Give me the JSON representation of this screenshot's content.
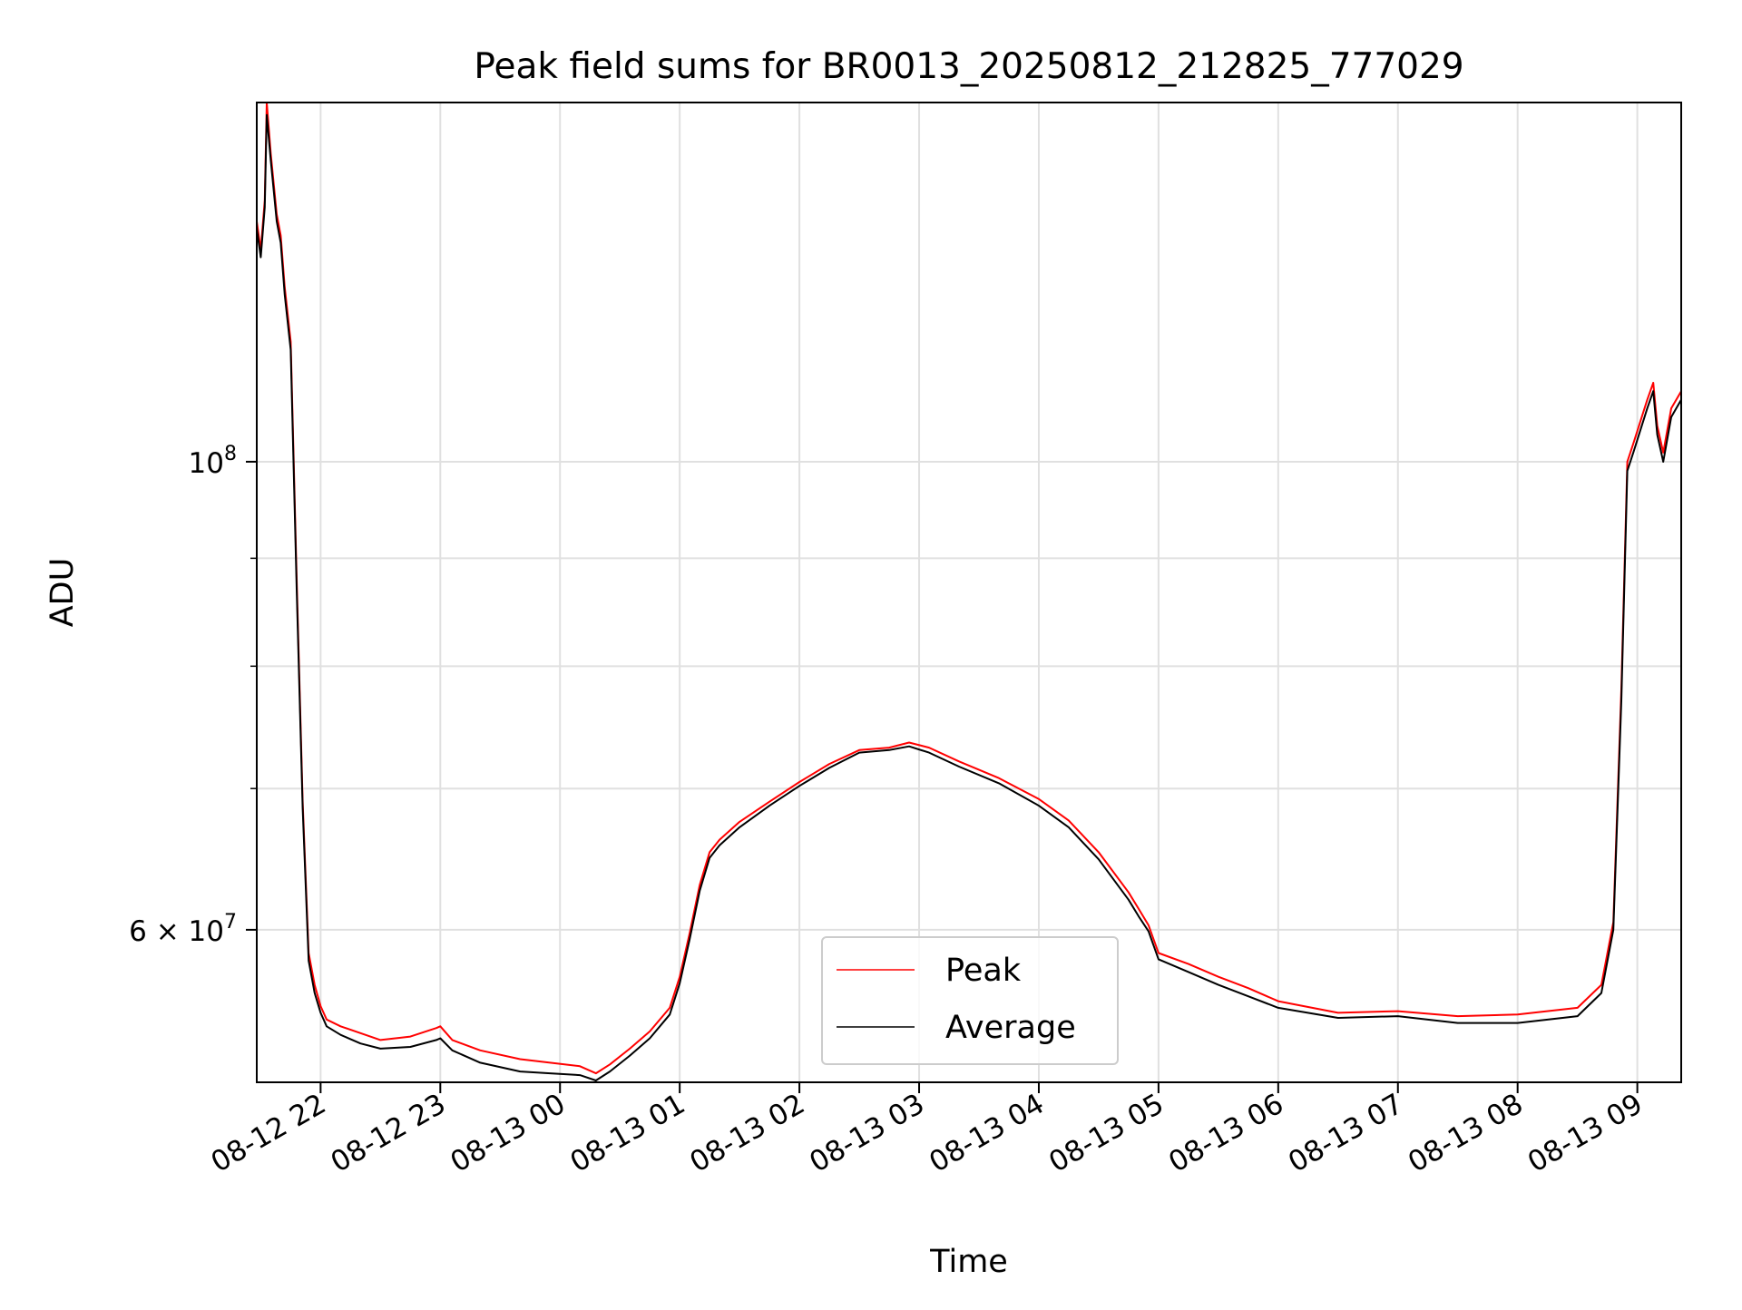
{
  "chart_data": {
    "type": "line",
    "title": "Peak field sums for BR0013_20250812_212825_777029",
    "xlabel": "Time",
    "ylabel": "ADU",
    "yscale": "log",
    "grid": true,
    "legend_position": "lower center",
    "xlim": [
      "2025-08-12 21:28",
      "2025-08-13 09:22"
    ],
    "ylim": [
      50800000,
      148000000
    ],
    "x_ticks": [
      "08-12 22",
      "08-12 23",
      "08-13 00",
      "08-13 01",
      "08-13 02",
      "08-13 03",
      "08-13 04",
      "08-13 05",
      "08-13 06",
      "08-13 07",
      "08-13 08",
      "08-13 09"
    ],
    "y_tick_labels": [
      {
        "value": 100000000,
        "base": "10",
        "exp": "8",
        "prefix": ""
      },
      {
        "value": 60000000,
        "base": "10",
        "exp": "7",
        "prefix": "6 × "
      }
    ],
    "y_minor_ticks": [
      70000000,
      80000000,
      90000000
    ],
    "series": [
      {
        "name": "Peak",
        "color": "#ff0000",
        "x": [
          "2025-08-12 21:28",
          "2025-08-12 21:30",
          "2025-08-12 21:32",
          "2025-08-12 21:33",
          "2025-08-12 21:35",
          "2025-08-12 21:38",
          "2025-08-12 21:40",
          "2025-08-12 21:42",
          "2025-08-12 21:45",
          "2025-08-12 21:48",
          "2025-08-12 21:51",
          "2025-08-12 21:54",
          "2025-08-12 21:57",
          "2025-08-12 22:00",
          "2025-08-12 22:03",
          "2025-08-12 22:10",
          "2025-08-12 22:20",
          "2025-08-12 22:30",
          "2025-08-12 22:45",
          "2025-08-12 22:58",
          "2025-08-12 23:00",
          "2025-08-12 23:06",
          "2025-08-12 23:20",
          "2025-08-12 23:40",
          "2025-08-12 23:55",
          "2025-08-13 00:10",
          "2025-08-13 00:18",
          "2025-08-13 00:25",
          "2025-08-13 00:35",
          "2025-08-13 00:45",
          "2025-08-13 00:55",
          "2025-08-13 01:00",
          "2025-08-13 01:05",
          "2025-08-13 01:10",
          "2025-08-13 01:15",
          "2025-08-13 01:20",
          "2025-08-13 01:30",
          "2025-08-13 01:45",
          "2025-08-13 02:00",
          "2025-08-13 02:15",
          "2025-08-13 02:30",
          "2025-08-13 02:45",
          "2025-08-13 02:55",
          "2025-08-13 03:05",
          "2025-08-13 03:20",
          "2025-08-13 03:40",
          "2025-08-13 04:00",
          "2025-08-13 04:15",
          "2025-08-13 04:30",
          "2025-08-13 04:45",
          "2025-08-13 04:50",
          "2025-08-13 04:55",
          "2025-08-13 05:00",
          "2025-08-13 05:15",
          "2025-08-13 05:30",
          "2025-08-13 05:45",
          "2025-08-13 06:00",
          "2025-08-13 06:30",
          "2025-08-13 07:00",
          "2025-08-13 07:30",
          "2025-08-13 08:00",
          "2025-08-13 08:30",
          "2025-08-13 08:42",
          "2025-08-13 08:48",
          "2025-08-13 08:52",
          "2025-08-13 08:55",
          "2025-08-13 08:58",
          "2025-08-13 09:05",
          "2025-08-13 09:08",
          "2025-08-13 09:10",
          "2025-08-13 09:13",
          "2025-08-13 09:17",
          "2025-08-13 09:22"
        ],
        "values": [
          130000000,
          126000000,
          133000000,
          148000000,
          140000000,
          131000000,
          128000000,
          121000000,
          114000000,
          88000000,
          69000000,
          58500000,
          56500000,
          55200000,
          54400000,
          54000000,
          53600000,
          53200000,
          53400000,
          53900000,
          54000000,
          53200000,
          52600000,
          52100000,
          51900000,
          51700000,
          51300000,
          51800000,
          52700000,
          53700000,
          55100000,
          57000000,
          59800000,
          63000000,
          65300000,
          66200000,
          67500000,
          69000000,
          70500000,
          71900000,
          73000000,
          73200000,
          73600000,
          73200000,
          72100000,
          70800000,
          69200000,
          67600000,
          65300000,
          62500000,
          61400000,
          60300000,
          58500000,
          57800000,
          57000000,
          56300000,
          55500000,
          54800000,
          54900000,
          54600000,
          54700000,
          55100000,
          56500000,
          60500000,
          78000000,
          100000000,
          102000000,
          107000000,
          109000000,
          104000000,
          101000000,
          106000000,
          108000000
        ]
      },
      {
        "name": "Average",
        "color": "#000000",
        "x": [
          "2025-08-12 21:28",
          "2025-08-12 21:30",
          "2025-08-12 21:32",
          "2025-08-12 21:33",
          "2025-08-12 21:35",
          "2025-08-12 21:38",
          "2025-08-12 21:40",
          "2025-08-12 21:42",
          "2025-08-12 21:45",
          "2025-08-12 21:48",
          "2025-08-12 21:51",
          "2025-08-12 21:54",
          "2025-08-12 21:57",
          "2025-08-12 22:00",
          "2025-08-12 22:03",
          "2025-08-12 22:10",
          "2025-08-12 22:20",
          "2025-08-12 22:30",
          "2025-08-12 22:45",
          "2025-08-12 22:58",
          "2025-08-12 23:00",
          "2025-08-12 23:06",
          "2025-08-12 23:20",
          "2025-08-12 23:40",
          "2025-08-12 23:55",
          "2025-08-13 00:10",
          "2025-08-13 00:18",
          "2025-08-13 00:25",
          "2025-08-13 00:35",
          "2025-08-13 00:45",
          "2025-08-13 00:55",
          "2025-08-13 01:00",
          "2025-08-13 01:05",
          "2025-08-13 01:10",
          "2025-08-13 01:15",
          "2025-08-13 01:20",
          "2025-08-13 01:30",
          "2025-08-13 01:45",
          "2025-08-13 02:00",
          "2025-08-13 02:15",
          "2025-08-13 02:30",
          "2025-08-13 02:45",
          "2025-08-13 02:55",
          "2025-08-13 03:05",
          "2025-08-13 03:20",
          "2025-08-13 03:40",
          "2025-08-13 04:00",
          "2025-08-13 04:15",
          "2025-08-13 04:30",
          "2025-08-13 04:45",
          "2025-08-13 04:50",
          "2025-08-13 04:55",
          "2025-08-13 05:00",
          "2025-08-13 05:15",
          "2025-08-13 05:30",
          "2025-08-13 05:45",
          "2025-08-13 06:00",
          "2025-08-13 06:30",
          "2025-08-13 07:00",
          "2025-08-13 07:30",
          "2025-08-13 08:00",
          "2025-08-13 08:30",
          "2025-08-13 08:42",
          "2025-08-13 08:48",
          "2025-08-13 08:52",
          "2025-08-13 08:55",
          "2025-08-13 08:58",
          "2025-08-13 09:05",
          "2025-08-13 09:08",
          "2025-08-13 09:10",
          "2025-08-13 09:13",
          "2025-08-13 09:17",
          "2025-08-13 09:22"
        ],
        "values": [
          129000000,
          125000000,
          132000000,
          146000000,
          139000000,
          130000000,
          127000000,
          120000000,
          113000000,
          87000000,
          68500000,
          58000000,
          56000000,
          54800000,
          54000000,
          53500000,
          53000000,
          52700000,
          52800000,
          53200000,
          53300000,
          52600000,
          51900000,
          51400000,
          51300000,
          51200000,
          50900000,
          51400000,
          52300000,
          53300000,
          54700000,
          56600000,
          59400000,
          62600000,
          64900000,
          65800000,
          67100000,
          68700000,
          70200000,
          71600000,
          72800000,
          73000000,
          73300000,
          72800000,
          71700000,
          70400000,
          68700000,
          67100000,
          64800000,
          62000000,
          60900000,
          59900000,
          58100000,
          57300000,
          56500000,
          55800000,
          55100000,
          54500000,
          54600000,
          54200000,
          54200000,
          54600000,
          56000000,
          60000000,
          77000000,
          99000000,
          101000000,
          106000000,
          108000000,
          103000000,
          100000000,
          105000000,
          107000000
        ]
      }
    ]
  }
}
